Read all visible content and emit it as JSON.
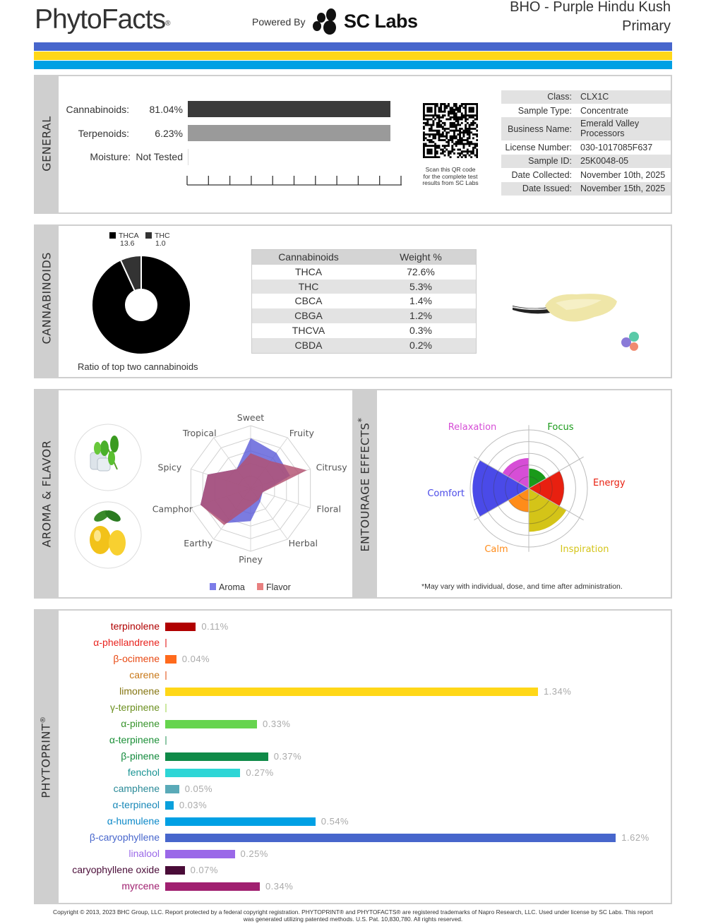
{
  "header": {
    "logo": "PhytoFacts",
    "logo_mark": "®",
    "powered_by": "Powered By",
    "lab_logo": "SC Labs",
    "title_line1": "BHO - Purple Hindu Kush",
    "title_line2": "Primary"
  },
  "stripes": [
    "#4766cc",
    "#ffd718",
    "#00a0e4"
  ],
  "general": {
    "label": "GENERAL",
    "metrics": [
      {
        "label": "Cannabinoids:",
        "value": "81.04%",
        "color": "#3a3a3a",
        "fill": 1
      },
      {
        "label": "Terpenoids:",
        "value": "6.23%",
        "color": "#9a9a9a",
        "fill": 1
      },
      {
        "label": "Moisture:",
        "value": "Not Tested",
        "color": "#dddddd",
        "fill": 0
      }
    ],
    "qr_caption": [
      "Scan this QR code",
      "for the complete test",
      "results from SC Labs"
    ],
    "info": [
      {
        "key": "Class:",
        "value": "CLX1C"
      },
      {
        "key": "Sample Type:",
        "value": "Concentrate"
      },
      {
        "key": "Business Name:",
        "value": "Emerald Valley",
        "value2": "Processors"
      },
      {
        "key": "License Number:",
        "value": "030-1017085F637"
      },
      {
        "key": "Sample ID:",
        "value": "25K0048-05"
      },
      {
        "key": "Date Collected:",
        "value": "November 10th, 2025"
      },
      {
        "key": "Date Issued:",
        "value": "November 15th, 2025"
      }
    ]
  },
  "cannabinoids": {
    "label": "CANNABINOIDS",
    "ratio_caption": "Ratio of top two cannabinoids",
    "ratio": [
      {
        "name": "THCA",
        "value": "13.6",
        "color": "#000000"
      },
      {
        "name": "THC",
        "value": "1.0",
        "color": "#333333"
      }
    ],
    "table_headers": [
      "Cannabinoids",
      "Weight %"
    ],
    "table_rows": [
      [
        "THCA",
        "72.6%"
      ],
      [
        "THC",
        "5.3%"
      ],
      [
        "CBCA",
        "1.4%"
      ],
      [
        "CBGA",
        "1.2%"
      ],
      [
        "THCVA",
        "0.3%"
      ],
      [
        "CBDA",
        "0.2%"
      ]
    ]
  },
  "aroma": {
    "label": "AROMA & FLAVOR",
    "icons": [
      "mint-ice-icon",
      "lemon-icon"
    ],
    "legend": [
      {
        "name": "Aroma",
        "color": "#7c7ce8"
      },
      {
        "name": "Flavor",
        "color": "#e88080"
      }
    ]
  },
  "entourage": {
    "label": "ENTOURAGE EFFECTS",
    "label_mark": "*",
    "footnote": "*May vary with individual, dose, and time after administration."
  },
  "chart_data": [
    {
      "type": "radar",
      "axes": [
        "Sweet",
        "Fruity",
        "Citrusy",
        "Floral",
        "Herbal",
        "Piney",
        "Earthy",
        "Camphor",
        "Spicy",
        "Tropical"
      ],
      "rlim": [
        0,
        5
      ],
      "grid": true,
      "series": [
        {
          "name": "Aroma",
          "color": "#5a5ad8",
          "values": [
            4.0,
            3.5,
            3.3,
            1.0,
            1.3,
            2.6,
            3.4,
            4.2,
            3.6,
            1.9
          ]
        },
        {
          "name": "Flavor",
          "color": "#b25070",
          "values": [
            2.8,
            2.7,
            4.7,
            1.0,
            1.1,
            1.4,
            3.6,
            4.2,
            3.6,
            1.9
          ]
        }
      ]
    },
    {
      "type": "polar-area",
      "categories": [
        "Relaxation",
        "Focus",
        "Energy",
        "Inspiration",
        "Calm",
        "Comfort"
      ],
      "colors": [
        "#d64ed6",
        "#1a9a1a",
        "#e82010",
        "#d4c418",
        "#ff8c1a",
        "#4a4ae8"
      ],
      "values": [
        2.6,
        1.7,
        3.0,
        3.7,
        2.0,
        4.8
      ],
      "rlim": [
        0,
        5
      ],
      "grid": true
    }
  ],
  "phytoprint": {
    "label": "PHYTOPRINT",
    "label_mark": "®",
    "terpenes": [
      {
        "name": "terpinolene",
        "value": 0.11,
        "label": "0.11%",
        "text_color": "#b00000",
        "bar_color": "#b00000"
      },
      {
        "name": "α-phellandrene",
        "value": 0,
        "label": "",
        "text_color": "#e8231e",
        "bar_color": "#f08080"
      },
      {
        "name": "β-ocimene",
        "value": 0.04,
        "label": "0.04%",
        "text_color": "#e84a14",
        "bar_color": "#ff6a1c"
      },
      {
        "name": "carene",
        "value": 0,
        "label": "",
        "text_color": "#c87818",
        "bar_color": "#f0a080"
      },
      {
        "name": "limonene",
        "value": 1.34,
        "label": "1.34%",
        "text_color": "#857510",
        "bar_color": "#ffd718"
      },
      {
        "name": "γ-terpinene",
        "value": 0,
        "label": "",
        "text_color": "#6c9020",
        "bar_color": "#cce8a0"
      },
      {
        "name": "α-pinene",
        "value": 0.33,
        "label": "0.33%",
        "text_color": "#38942c",
        "bar_color": "#66d44e"
      },
      {
        "name": "α-terpinene",
        "value": 0,
        "label": "",
        "text_color": "#1c9038",
        "bar_color": "#90c8a8"
      },
      {
        "name": "β-pinene",
        "value": 0.37,
        "label": "0.37%",
        "text_color": "#128a3c",
        "bar_color": "#0f8a48"
      },
      {
        "name": "fenchol",
        "value": 0.27,
        "label": "0.27%",
        "text_color": "#1a9494",
        "bar_color": "#2ed6d6"
      },
      {
        "name": "camphene",
        "value": 0.05,
        "label": "0.05%",
        "text_color": "#2a8a98",
        "bar_color": "#5aaab8"
      },
      {
        "name": "α-terpineol",
        "value": 0.03,
        "label": "0.03%",
        "text_color": "#1888b8",
        "bar_color": "#0aa0dc"
      },
      {
        "name": "α-humulene",
        "value": 0.54,
        "label": "0.54%",
        "text_color": "#0a88c8",
        "bar_color": "#00a0e4"
      },
      {
        "name": "β-caryophyllene",
        "value": 1.62,
        "label": "1.62%",
        "text_color": "#4766cc",
        "bar_color": "#4766cc"
      },
      {
        "name": "linalool",
        "value": 0.25,
        "label": "0.25%",
        "text_color": "#9a68e8",
        "bar_color": "#9a68e8"
      },
      {
        "name": "caryophyllene oxide",
        "value": 0.07,
        "label": "0.07%",
        "text_color": "#4a0c38",
        "bar_color": "#4a0c38"
      },
      {
        "name": "myrcene",
        "value": 0.34,
        "label": "0.34%",
        "text_color": "#a02070",
        "bar_color": "#a02070"
      }
    ]
  },
  "footer": {
    "line1": "Copyright © 2013, 2023 BHC Group, LLC. Report protected by a federal copyright registration. PHYTOPRINT® and PHYTOFACTS® are registered trademarks of Napro Research, LLC. Used under license by SC Labs. This report",
    "line2": "was generated utilizing patented methods. U.S. Pat. 10,830,780. All rights reserved."
  }
}
